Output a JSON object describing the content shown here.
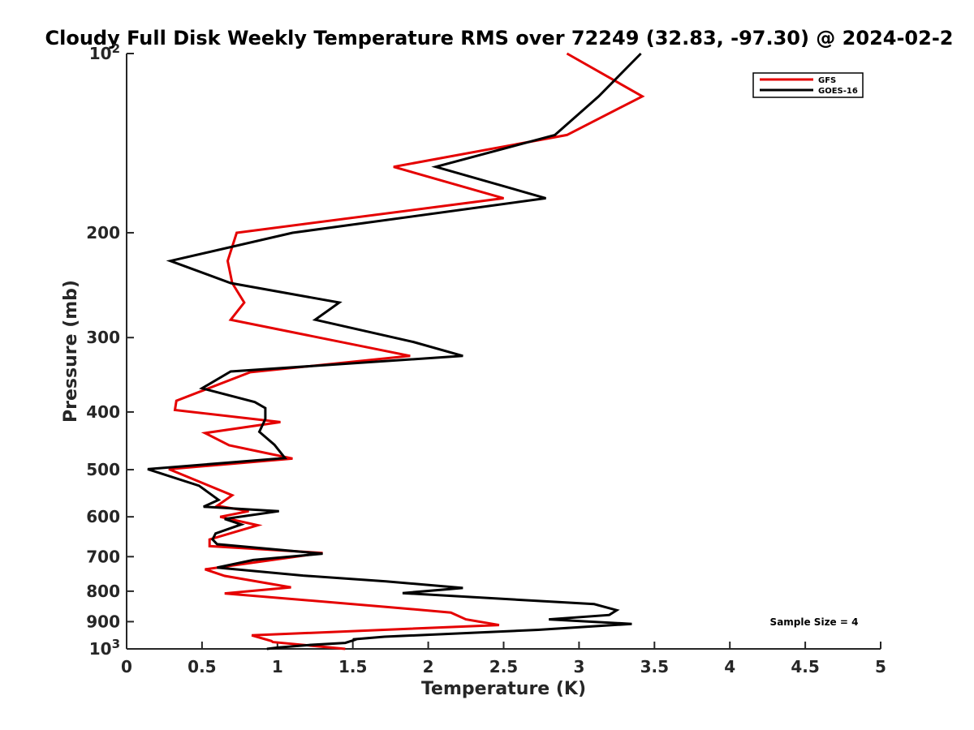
{
  "chart_data": {
    "type": "line",
    "title": "Cloudy Full Disk Weekly Temperature RMS over 72249 (32.83, -97.30) @ 2024-02-2",
    "xlabel": "Temperature (K)",
    "ylabel": "Pressure (mb)",
    "xlim": [
      0,
      5
    ],
    "ylim": [
      100,
      1000
    ],
    "yscale": "log",
    "y_reversed": true,
    "grid": false,
    "legend_position": "top-right",
    "x_ticks": [
      "0",
      "0.5",
      "1",
      "1.5",
      "2",
      "2.5",
      "3",
      "3.5",
      "4",
      "4.5",
      "5"
    ],
    "y_ticks": [
      {
        "value": 100,
        "base": "10",
        "exp": "2"
      },
      {
        "value": 200,
        "label": "200"
      },
      {
        "value": 300,
        "label": "300"
      },
      {
        "value": 400,
        "label": "400"
      },
      {
        "value": 500,
        "label": "500"
      },
      {
        "value": 600,
        "label": "600"
      },
      {
        "value": 700,
        "label": "700"
      },
      {
        "value": 800,
        "label": "800"
      },
      {
        "value": 900,
        "label": "900"
      },
      {
        "value": 1000,
        "base": "10",
        "exp": "3"
      }
    ],
    "annotation": "Sample Size = 4",
    "series": [
      {
        "name": "GFS",
        "color": "#e50000",
        "x": [
          2.92,
          3.42,
          2.92,
          1.77,
          2.5,
          0.73,
          0.67,
          0.7,
          0.78,
          0.69,
          1.88,
          0.82,
          0.33,
          0.32,
          1.02,
          0.52,
          0.68,
          1.1,
          0.28,
          0.7,
          0.6,
          0.81,
          0.62,
          0.87,
          0.55,
          0.55,
          1.3,
          0.52,
          0.65,
          1.09,
          0.65,
          1.72,
          2.15,
          2.25,
          2.47,
          0.83,
          0.96,
          0.97,
          1.45
        ],
        "y": [
          100,
          118,
          137,
          155,
          175,
          200,
          223,
          243,
          262,
          280,
          322,
          343,
          383,
          397,
          416,
          434,
          455,
          479,
          499,
          552,
          575,
          587,
          600,
          620,
          655,
          672,
          690,
          735,
          754,
          788,
          807,
          850,
          869,
          892,
          912,
          949,
          970,
          974,
          1000
        ]
      },
      {
        "name": "GOES-16",
        "color": "#000000",
        "x": [
          3.41,
          3.13,
          2.84,
          2.05,
          2.78,
          1.1,
          0.29,
          0.69,
          1.41,
          1.25,
          1.9,
          2.23,
          0.69,
          0.5,
          0.85,
          0.92,
          0.92,
          0.88,
          0.98,
          1.05,
          0.14,
          0.48,
          0.61,
          0.51,
          1.01,
          0.65,
          0.76,
          0.59,
          0.57,
          0.6,
          1.3,
          0.84,
          0.6,
          1.17,
          1.72,
          2.23,
          1.83,
          3.1,
          3.25,
          3.2,
          2.8,
          3.35,
          2.73,
          1.71,
          1.5,
          1.51,
          1.45,
          1.21,
          1.0,
          0.93
        ],
        "y": [
          100,
          118,
          137,
          155,
          175,
          200,
          223,
          243,
          262,
          280,
          305,
          322,
          342,
          365,
          385,
          394,
          411,
          432,
          454,
          478,
          499,
          532,
          562,
          577,
          587,
          605,
          618,
          640,
          655,
          667,
          692,
          709,
          730,
          753,
          770,
          790,
          806,
          841,
          861,
          877,
          892,
          908,
          929,
          954,
          964,
          966,
          977,
          985,
          995,
          1000
        ]
      }
    ]
  }
}
